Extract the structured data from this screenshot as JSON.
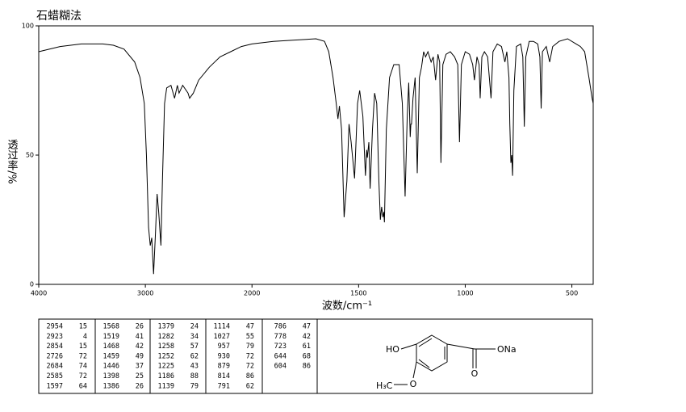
{
  "chart_data": {
    "type": "line",
    "title": "石蜡糊法",
    "x_label": "波数/cm⁻¹",
    "y_label": "透过率/%",
    "xlim": [
      4000,
      400
    ],
    "x_expand_below": 2000,
    "xticks": [
      4000,
      3000,
      2000,
      1500,
      1000,
      500
    ],
    "ylim": [
      0,
      100
    ],
    "yticks": [
      0,
      50,
      100
    ],
    "color": "#000000",
    "x": [
      4000,
      3800,
      3600,
      3400,
      3300,
      3200,
      3100,
      3050,
      3010,
      2990,
      2970,
      2954,
      2940,
      2923,
      2905,
      2890,
      2875,
      2854,
      2840,
      2820,
      2800,
      2760,
      2726,
      2700,
      2684,
      2650,
      2600,
      2585,
      2550,
      2500,
      2400,
      2300,
      2200,
      2100,
      2000,
      1900,
      1800,
      1700,
      1660,
      1640,
      1620,
      1605,
      1597,
      1590,
      1580,
      1568,
      1555,
      1545,
      1535,
      1519,
      1505,
      1495,
      1480,
      1468,
      1462,
      1459,
      1452,
      1446,
      1435,
      1425,
      1415,
      1405,
      1398,
      1392,
      1386,
      1382,
      1379,
      1370,
      1355,
      1335,
      1310,
      1295,
      1282,
      1272,
      1265,
      1258,
      1255,
      1252,
      1245,
      1235,
      1225,
      1215,
      1205,
      1195,
      1186,
      1175,
      1160,
      1150,
      1139,
      1128,
      1120,
      1114,
      1105,
      1090,
      1070,
      1050,
      1035,
      1027,
      1018,
      1000,
      980,
      965,
      957,
      945,
      935,
      930,
      922,
      910,
      895,
      879,
      870,
      850,
      830,
      814,
      805,
      795,
      791,
      786,
      782,
      778,
      772,
      760,
      740,
      730,
      723,
      716,
      700,
      680,
      660,
      650,
      644,
      638,
      620,
      604,
      590,
      560,
      520,
      480,
      460,
      440,
      420,
      405,
      400
    ],
    "y": [
      90,
      92,
      93,
      93,
      92.5,
      91,
      86,
      80,
      70,
      50,
      22,
      15,
      18,
      4,
      20,
      35,
      28,
      15,
      40,
      70,
      76,
      77,
      72,
      77,
      74,
      77,
      74,
      72,
      74,
      79,
      84,
      88,
      90,
      92,
      93,
      94,
      94.5,
      95,
      94,
      90,
      80,
      70,
      64,
      69,
      60,
      26,
      40,
      62,
      55,
      41,
      70,
      75,
      65,
      42,
      52,
      49,
      55,
      37,
      60,
      74,
      70,
      40,
      25,
      30,
      26,
      28,
      24,
      60,
      80,
      85,
      85,
      70,
      34,
      65,
      78,
      57,
      62,
      62,
      72,
      80,
      43,
      80,
      84,
      90,
      88,
      90,
      86,
      88,
      79,
      89,
      86,
      47,
      85,
      89,
      90,
      88,
      85,
      55,
      85,
      90,
      89,
      85,
      79,
      88,
      85,
      72,
      88,
      90,
      88,
      72,
      90,
      93,
      92,
      86,
      90,
      80,
      62,
      47,
      50,
      42,
      75,
      92,
      93,
      88,
      61,
      88,
      94,
      94,
      93,
      88,
      68,
      90,
      92,
      86,
      92,
      94,
      95,
      93,
      92,
      90,
      80,
      72,
      70
    ]
  },
  "peak_table": [
    [
      2954,
      15
    ],
    [
      2923,
      4
    ],
    [
      2854,
      15
    ],
    [
      2726,
      72
    ],
    [
      2684,
      74
    ],
    [
      2585,
      72
    ],
    [
      1597,
      64
    ],
    [
      1568,
      26
    ],
    [
      1519,
      41
    ],
    [
      1468,
      42
    ],
    [
      1459,
      49
    ],
    [
      1446,
      37
    ],
    [
      1398,
      25
    ],
    [
      1386,
      26
    ],
    [
      1379,
      24
    ],
    [
      1282,
      34
    ],
    [
      1258,
      57
    ],
    [
      1252,
      62
    ],
    [
      1225,
      43
    ],
    [
      1186,
      88
    ],
    [
      1139,
      79
    ],
    [
      1114,
      47
    ],
    [
      1027,
      55
    ],
    [
      957,
      79
    ],
    [
      930,
      72
    ],
    [
      879,
      72
    ],
    [
      814,
      86
    ],
    [
      791,
      62
    ],
    [
      786,
      47
    ],
    [
      778,
      42
    ],
    [
      723,
      61
    ],
    [
      644,
      68
    ],
    [
      604,
      86
    ]
  ],
  "structure": {
    "hydroxyl": "HO",
    "carboxylate": "ONa",
    "carbonyl": "O",
    "methoxy_o": "O",
    "methyl": "H₃C"
  }
}
